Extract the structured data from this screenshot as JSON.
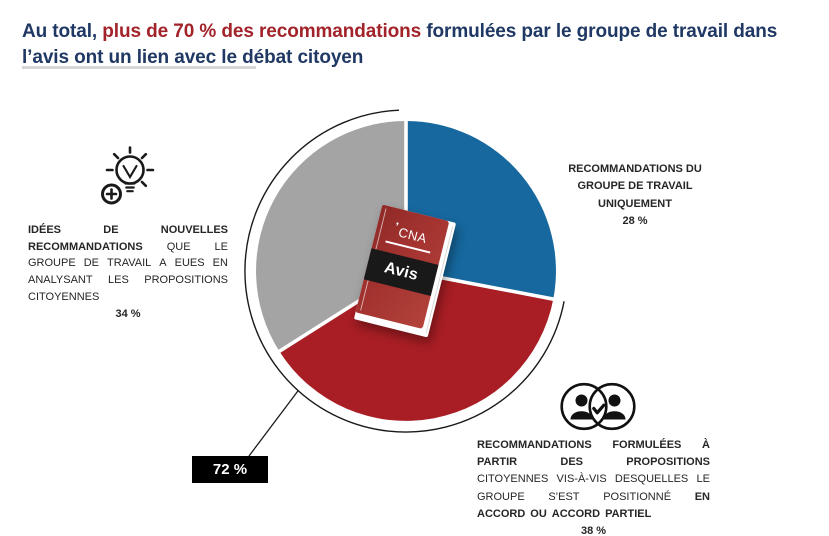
{
  "title": {
    "part1": "Au total, ",
    "part2": "plus de 70 % des recommandations",
    "part3": " formulées par le groupe de travail dans l’avis ont un lien avec le débat citoyen"
  },
  "chart_data": {
    "type": "pie",
    "start_angle_deg": 0,
    "direction": "clockwise",
    "total": 100,
    "slices": [
      {
        "label": "RECOMMANDATIONS DU GROUPE DE TRAVAIL UNIQUEMENT",
        "value": 28,
        "pct_label": "28 %",
        "color": "#16689E"
      },
      {
        "label": "RECOMMANDATIONS FORMULÉES À PARTIR DES PROPOSITIONS CITOYENNES VIS-À-VIS DESQUELLES LE GROUPE S’EST POSITIONNÉ EN ACCORD OU ACCORD PARTIEL",
        "value": 38,
        "pct_label": "38 %",
        "color": "#A81E24"
      },
      {
        "label": "IDÉES DE NOUVELLES RECOMMANDATIONS QUE LE GROUPE DE TRAVAIL A EUES EN ANALYSANT LES PROPOSITIONS CITOYENNES",
        "value": 34,
        "pct_label": "34 %",
        "color": "#A4A4A4"
      }
    ],
    "callout": {
      "label": "72 %"
    },
    "center_graphic": {
      "brand": "CNA",
      "book_title": "Avis"
    },
    "legend_position": "around",
    "grid": false
  },
  "labels": {
    "right_top": {
      "lines": [
        {
          "seg": [
            {
              "t": "RECOMMANDATIONS DU",
              "b": 1
            }
          ]
        },
        {
          "seg": [
            {
              "t": "GROUPE DE TRAVAIL",
              "b": 1
            }
          ]
        },
        {
          "seg": [
            {
              "t": "UNIQUEMENT",
              "b": 1
            }
          ]
        }
      ]
    },
    "left": {
      "lines": [
        {
          "seg": [
            {
              "t": "IDÉES",
              "b": 1
            },
            {
              "t": "DE",
              "b": 1
            },
            {
              "t": "NOUVELLES",
              "b": 1
            }
          ]
        },
        {
          "seg": [
            {
              "t": "RECOMMANDATIONS",
              "b": 1
            },
            {
              "t": "QUE",
              "b": 0
            },
            {
              "t": "LE",
              "b": 0
            }
          ]
        },
        {
          "seg": [
            {
              "t": "GROUPE",
              "b": 0
            },
            {
              "t": "DE",
              "b": 0
            },
            {
              "t": "TRAVAIL",
              "b": 0
            },
            {
              "t": "A",
              "b": 0
            },
            {
              "t": "EUES",
              "b": 0
            },
            {
              "t": "EN",
              "b": 0
            }
          ]
        },
        {
          "seg": [
            {
              "t": "ANALYSANT",
              "b": 0
            },
            {
              "t": "LES",
              "b": 0
            },
            {
              "t": "PROPOSITIONS",
              "b": 0
            }
          ]
        },
        {
          "seg": [
            {
              "t": "CITOYENNES",
              "b": 0
            }
          ],
          "align": "left"
        }
      ]
    },
    "right_bottom": {
      "lines": [
        {
          "seg": [
            {
              "t": "RECOMMANDATIONS",
              "b": 1
            },
            {
              "t": "FORMULÉES",
              "b": 1
            },
            {
              "t": "À",
              "b": 1
            }
          ]
        },
        {
          "seg": [
            {
              "t": "PARTIR",
              "b": 1
            },
            {
              "t": "DES",
              "b": 1
            },
            {
              "t": "PROPOSITIONS",
              "b": 1
            }
          ]
        },
        {
          "seg": [
            {
              "t": "CITOYENNES",
              "b": 0
            },
            {
              "t": "VIS-À-VIS",
              "b": 0
            },
            {
              "t": "DESQUELLES",
              "b": 0
            },
            {
              "t": "LE",
              "b": 0
            }
          ]
        },
        {
          "seg": [
            {
              "t": "GROUPE",
              "b": 0
            },
            {
              "t": "S’EST",
              "b": 0
            },
            {
              "t": "POSITIONNÉ",
              "b": 0
            },
            {
              "t": "EN",
              "b": 1
            }
          ]
        },
        {
          "seg": [
            {
              "t": "ACCORD",
              "b": 1
            },
            {
              "t": "OU",
              "b": 1
            },
            {
              "t": "ACCORD",
              "b": 1
            },
            {
              "t": "PARTIEL",
              "b": 1
            }
          ],
          "align": "left"
        }
      ]
    }
  },
  "colors": {
    "title_navy": "#1F3864",
    "title_red": "#A2232A",
    "pie_blue": "#16689E",
    "pie_red": "#A81E24",
    "pie_gray": "#A4A4A4",
    "arc_stroke": "#1A1A1A",
    "callout_bg": "#000000",
    "callout_text": "#FFFFFF",
    "label_text": "#262626",
    "book_cover_red": "#A43330",
    "book_band_black": "#191919"
  }
}
